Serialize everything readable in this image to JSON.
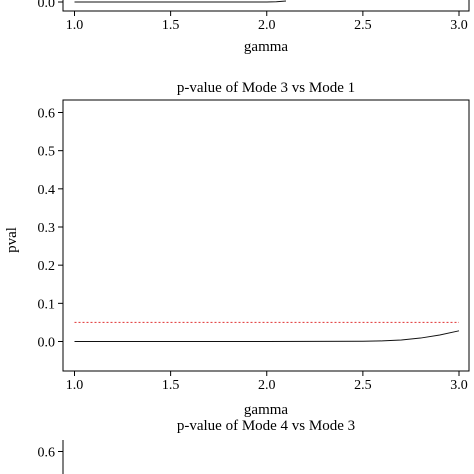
{
  "chart_data": [
    {
      "type": "line",
      "title": "",
      "xlabel": "gamma",
      "ylabel": "",
      "xlim": [
        1.0,
        3.0
      ],
      "x_ticks": [
        "1.0",
        "1.5",
        "2.0",
        "2.5",
        "3.0"
      ],
      "y_ticks": [
        "0.0"
      ],
      "series": [
        {
          "x": [
            1.0,
            1.5,
            2.0,
            2.05,
            2.1
          ],
          "values": [
            0.0,
            0.0,
            0.0,
            0.001,
            0.004
          ]
        }
      ]
    },
    {
      "type": "line",
      "title": "p-value of Mode 3 vs Mode 1",
      "xlabel": "gamma",
      "ylabel": "pval",
      "xlim": [
        1.0,
        3.0
      ],
      "ylim": [
        0.0,
        0.6
      ],
      "x_ticks": [
        "1.0",
        "1.5",
        "2.0",
        "2.5",
        "3.0"
      ],
      "y_ticks": [
        "0.0",
        "0.1",
        "0.2",
        "0.3",
        "0.4",
        "0.5",
        "0.6"
      ],
      "reference_line": {
        "y": 0.05,
        "color": "#e03030",
        "style": "dotted"
      },
      "series": [
        {
          "x": [
            1.0,
            1.5,
            2.0,
            2.5,
            2.6,
            2.7,
            2.8,
            2.9,
            3.0
          ],
          "values": [
            0.0,
            0.0,
            0.0,
            0.0005,
            0.0015,
            0.004,
            0.009,
            0.017,
            0.028
          ]
        }
      ]
    },
    {
      "type": "line",
      "title": "p-value of Mode 4 vs Mode 3",
      "xlabel": "",
      "ylabel": "",
      "y_ticks": [
        "0.6"
      ],
      "series": []
    }
  ]
}
